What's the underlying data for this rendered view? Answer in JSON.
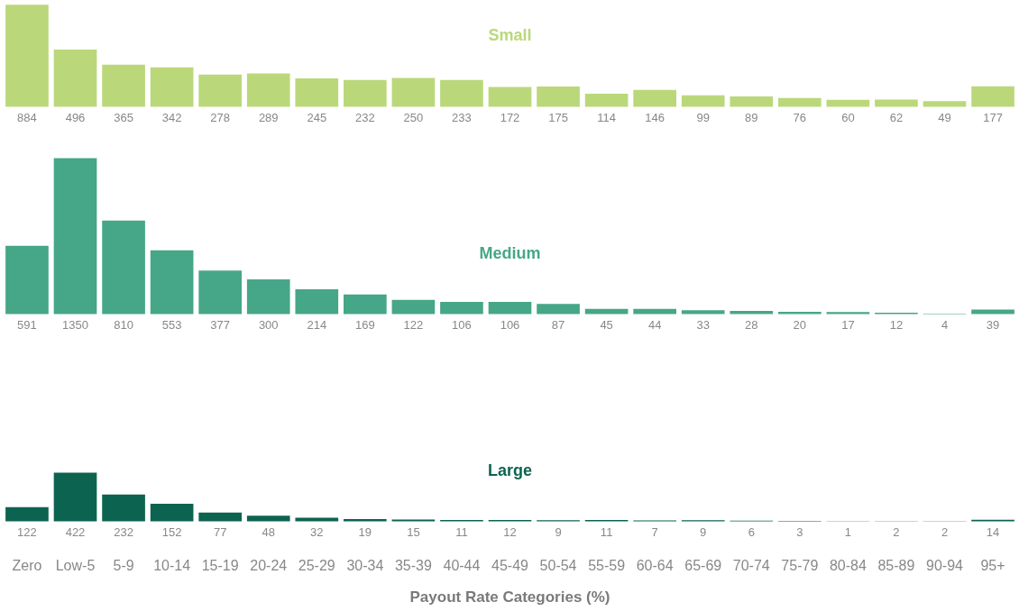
{
  "chart_data": [
    {
      "type": "bar",
      "title": "Small",
      "categories": [
        null,
        null,
        null,
        null,
        null,
        null,
        null,
        null,
        null,
        null,
        null,
        null,
        null,
        null,
        null,
        null,
        null,
        null,
        null,
        null,
        null
      ],
      "values": [
        884,
        496,
        365,
        342,
        278,
        289,
        245,
        232,
        250,
        233,
        172,
        175,
        114,
        146,
        99,
        89,
        76,
        60,
        62,
        49,
        177
      ],
      "color": "#bad87a",
      "data_labels": true,
      "tick_labels": false
    },
    {
      "type": "bar",
      "title": "Medium",
      "categories": [
        null,
        null,
        null,
        null,
        null,
        null,
        null,
        null,
        null,
        null,
        null,
        null,
        null,
        null,
        null,
        null,
        null,
        null,
        null,
        null,
        null
      ],
      "values": [
        591,
        1350,
        810,
        553,
        377,
        300,
        214,
        169,
        122,
        106,
        106,
        87,
        45,
        44,
        33,
        28,
        20,
        17,
        12,
        4,
        39
      ],
      "color": "#46a688",
      "data_labels": true,
      "tick_labels": false
    },
    {
      "type": "bar",
      "title": "Large",
      "categories": [
        "Zero",
        "Low-5",
        "5-9",
        "10-14",
        "15-19",
        "20-24",
        "25-29",
        "30-34",
        "35-39",
        "40-44",
        "45-49",
        "50-54",
        "55-59",
        "60-64",
        "65-69",
        "70-74",
        "75-79",
        "80-84",
        "85-89",
        "90-94",
        "95+"
      ],
      "values": [
        122,
        422,
        232,
        152,
        77,
        48,
        32,
        19,
        15,
        11,
        12,
        9,
        11,
        7,
        9,
        6,
        3,
        1,
        2,
        2,
        14
      ],
      "color": "#0c6350",
      "data_labels": true,
      "tick_labels": "x",
      "xlabel": "Payout Rate Categories (%)"
    }
  ]
}
